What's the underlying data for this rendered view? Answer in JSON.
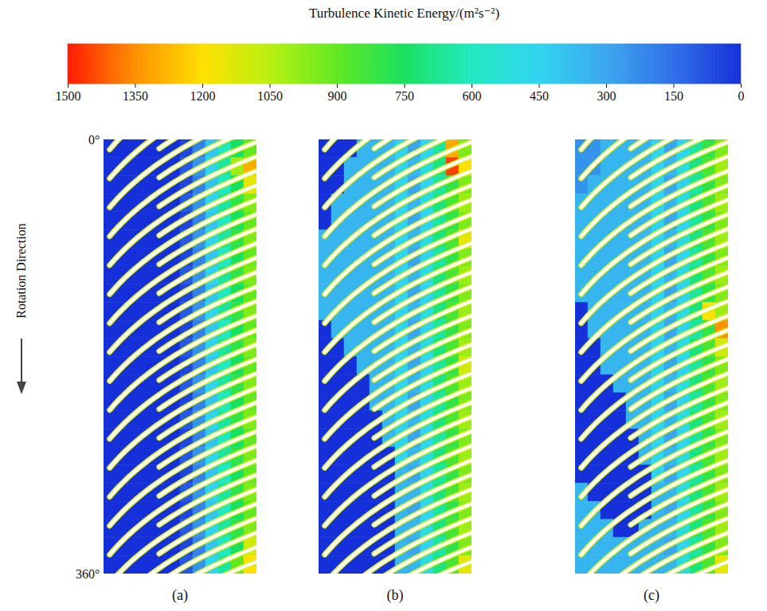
{
  "chart_data": {
    "type": "heatmap",
    "annotation": "Rotation Direction",
    "ylim": [
      0,
      360
    ],
    "yticks": [
      {
        "value": 0,
        "label": "0°"
      },
      {
        "value": 360,
        "label": "360°"
      }
    ],
    "tick_labels": "y",
    "colorbar": {
      "title": "Turbulence Kinetic Energy/(m²s⁻²)",
      "range": [
        0,
        1500
      ],
      "ticks": [
        1500,
        1350,
        1200,
        1050,
        900,
        750,
        600,
        450,
        300,
        150,
        0
      ],
      "colors": [
        "#1530d8",
        "#2f6ee8",
        "#3aa6ee",
        "#30d4f0",
        "#20e8c0",
        "#18e060",
        "#60e820",
        "#b8f010",
        "#ffe000",
        "#ff9000",
        "#ff1a00"
      ]
    },
    "panels": [
      {
        "title": "(a)",
        "cells": [
          [
            0,
            0,
            0,
            0,
            0,
            0,
            50,
            200,
            400,
            600,
            750,
            900
          ],
          [
            0,
            0,
            0,
            0,
            0,
            0,
            100,
            250,
            450,
            650,
            1000,
            1300
          ],
          [
            0,
            0,
            0,
            0,
            0,
            0,
            50,
            200,
            400,
            600,
            750,
            1150
          ],
          [
            0,
            0,
            0,
            0,
            0,
            0,
            100,
            250,
            450,
            650,
            800,
            950
          ],
          [
            0,
            0,
            0,
            0,
            0,
            0,
            50,
            200,
            400,
            600,
            750,
            900
          ],
          [
            0,
            0,
            0,
            0,
            0,
            0,
            100,
            250,
            450,
            650,
            800,
            950
          ],
          [
            0,
            0,
            0,
            0,
            0,
            0,
            50,
            200,
            400,
            600,
            750,
            900
          ],
          [
            0,
            0,
            0,
            0,
            0,
            0,
            100,
            250,
            450,
            650,
            800,
            950
          ],
          [
            0,
            0,
            0,
            0,
            0,
            0,
            50,
            200,
            400,
            600,
            750,
            900
          ],
          [
            0,
            0,
            0,
            0,
            0,
            0,
            100,
            250,
            450,
            650,
            800,
            950
          ],
          [
            0,
            0,
            0,
            0,
            0,
            0,
            50,
            200,
            400,
            600,
            750,
            900
          ],
          [
            0,
            0,
            0,
            0,
            0,
            0,
            100,
            250,
            450,
            650,
            800,
            950
          ],
          [
            0,
            0,
            0,
            0,
            0,
            0,
            50,
            200,
            400,
            600,
            750,
            900
          ],
          [
            0,
            0,
            0,
            0,
            0,
            0,
            100,
            250,
            450,
            650,
            800,
            950
          ],
          [
            0,
            0,
            0,
            0,
            0,
            0,
            50,
            200,
            400,
            600,
            750,
            900
          ],
          [
            0,
            0,
            0,
            0,
            0,
            0,
            100,
            250,
            450,
            650,
            800,
            950
          ],
          [
            0,
            0,
            0,
            0,
            0,
            0,
            50,
            200,
            400,
            600,
            750,
            900
          ],
          [
            0,
            0,
            0,
            0,
            0,
            0,
            100,
            250,
            450,
            650,
            800,
            950
          ],
          [
            0,
            0,
            0,
            0,
            0,
            0,
            50,
            200,
            400,
            600,
            750,
            900
          ],
          [
            0,
            0,
            0,
            0,
            0,
            0,
            100,
            250,
            450,
            650,
            800,
            950
          ],
          [
            0,
            0,
            0,
            0,
            0,
            0,
            50,
            200,
            400,
            600,
            750,
            900
          ],
          [
            0,
            0,
            0,
            0,
            0,
            0,
            100,
            250,
            450,
            650,
            800,
            950
          ],
          [
            0,
            0,
            0,
            0,
            0,
            0,
            50,
            200,
            400,
            600,
            750,
            1100
          ],
          [
            0,
            0,
            0,
            0,
            0,
            0,
            100,
            250,
            450,
            650,
            900,
            1200
          ]
        ]
      },
      {
        "title": "(b)",
        "cells": [
          [
            0,
            0,
            0,
            350,
            350,
            350,
            450,
            300,
            450,
            650,
            1300,
            950
          ],
          [
            0,
            0,
            350,
            350,
            350,
            350,
            450,
            350,
            500,
            700,
            1450,
            1200
          ],
          [
            0,
            0,
            350,
            350,
            350,
            350,
            450,
            300,
            450,
            650,
            800,
            950
          ],
          [
            0,
            350,
            350,
            350,
            350,
            350,
            450,
            350,
            500,
            700,
            850,
            1000
          ],
          [
            0,
            350,
            350,
            350,
            350,
            350,
            450,
            300,
            450,
            650,
            800,
            950
          ],
          [
            350,
            350,
            350,
            350,
            350,
            350,
            450,
            350,
            500,
            700,
            850,
            1150
          ],
          [
            350,
            350,
            350,
            350,
            350,
            350,
            450,
            300,
            450,
            650,
            800,
            950
          ],
          [
            350,
            350,
            350,
            350,
            350,
            350,
            450,
            350,
            500,
            700,
            850,
            1000
          ],
          [
            350,
            350,
            350,
            350,
            350,
            350,
            450,
            300,
            450,
            650,
            800,
            950
          ],
          [
            350,
            350,
            350,
            350,
            350,
            350,
            450,
            350,
            500,
            700,
            850,
            1000
          ],
          [
            0,
            350,
            350,
            350,
            350,
            350,
            450,
            300,
            450,
            650,
            800,
            950
          ],
          [
            0,
            0,
            350,
            350,
            350,
            350,
            450,
            350,
            500,
            700,
            850,
            1000
          ],
          [
            0,
            0,
            0,
            350,
            350,
            350,
            450,
            300,
            450,
            650,
            800,
            1100
          ],
          [
            0,
            0,
            0,
            0,
            350,
            350,
            450,
            350,
            500,
            700,
            850,
            1000
          ],
          [
            0,
            0,
            0,
            0,
            350,
            350,
            450,
            300,
            450,
            650,
            800,
            950
          ],
          [
            0,
            0,
            0,
            0,
            0,
            350,
            450,
            350,
            500,
            700,
            850,
            1000
          ],
          [
            0,
            0,
            0,
            0,
            0,
            350,
            450,
            300,
            450,
            650,
            800,
            950
          ],
          [
            0,
            0,
            0,
            0,
            0,
            0,
            450,
            350,
            500,
            700,
            850,
            1000
          ],
          [
            0,
            0,
            0,
            0,
            0,
            0,
            350,
            300,
            450,
            650,
            800,
            950
          ],
          [
            0,
            0,
            0,
            0,
            0,
            0,
            350,
            350,
            500,
            700,
            850,
            1000
          ],
          [
            0,
            0,
            0,
            0,
            0,
            0,
            350,
            300,
            450,
            650,
            800,
            950
          ],
          [
            0,
            0,
            0,
            0,
            0,
            0,
            350,
            350,
            500,
            700,
            850,
            1000
          ],
          [
            0,
            0,
            0,
            0,
            0,
            0,
            350,
            300,
            450,
            650,
            800,
            950
          ],
          [
            0,
            0,
            0,
            0,
            0,
            0,
            350,
            350,
            500,
            700,
            850,
            1150
          ]
        ]
      },
      {
        "title": "(c)",
        "cells": [
          [
            250,
            250,
            350,
            350,
            350,
            350,
            450,
            300,
            450,
            650,
            800,
            950
          ],
          [
            250,
            250,
            350,
            350,
            350,
            350,
            450,
            350,
            500,
            700,
            850,
            1000
          ],
          [
            250,
            350,
            350,
            350,
            350,
            350,
            450,
            300,
            450,
            650,
            800,
            950
          ],
          [
            350,
            350,
            350,
            350,
            350,
            350,
            450,
            350,
            500,
            700,
            850,
            1000
          ],
          [
            350,
            350,
            350,
            350,
            350,
            350,
            450,
            300,
            450,
            650,
            800,
            950
          ],
          [
            350,
            350,
            350,
            350,
            350,
            350,
            450,
            350,
            500,
            700,
            850,
            1000
          ],
          [
            350,
            350,
            350,
            350,
            350,
            350,
            450,
            300,
            450,
            650,
            800,
            950
          ],
          [
            350,
            350,
            350,
            350,
            350,
            350,
            450,
            350,
            500,
            700,
            850,
            1000
          ],
          [
            350,
            350,
            350,
            350,
            350,
            350,
            450,
            300,
            450,
            650,
            800,
            950
          ],
          [
            0,
            350,
            350,
            350,
            350,
            350,
            450,
            350,
            500,
            700,
            1200,
            1000
          ],
          [
            0,
            350,
            350,
            350,
            350,
            350,
            450,
            300,
            450,
            650,
            800,
            1350
          ],
          [
            0,
            0,
            350,
            350,
            350,
            350,
            450,
            350,
            500,
            700,
            850,
            1100
          ],
          [
            0,
            0,
            350,
            350,
            350,
            350,
            450,
            300,
            450,
            650,
            800,
            950
          ],
          [
            0,
            0,
            0,
            350,
            350,
            350,
            450,
            350,
            500,
            700,
            850,
            1000
          ],
          [
            0,
            0,
            0,
            0,
            350,
            350,
            450,
            300,
            450,
            650,
            800,
            950
          ],
          [
            0,
            0,
            0,
            0,
            350,
            350,
            450,
            350,
            500,
            700,
            850,
            1000
          ],
          [
            0,
            0,
            0,
            0,
            0,
            350,
            450,
            300,
            450,
            650,
            800,
            950
          ],
          [
            0,
            0,
            0,
            0,
            0,
            350,
            450,
            350,
            500,
            700,
            850,
            1000
          ],
          [
            0,
            0,
            0,
            0,
            0,
            0,
            450,
            300,
            450,
            650,
            800,
            950
          ],
          [
            350,
            0,
            0,
            0,
            0,
            0,
            350,
            350,
            500,
            700,
            850,
            1000
          ],
          [
            350,
            350,
            0,
            0,
            0,
            0,
            350,
            300,
            450,
            650,
            800,
            950
          ],
          [
            350,
            350,
            350,
            0,
            0,
            350,
            350,
            350,
            500,
            700,
            850,
            1000
          ],
          [
            350,
            350,
            350,
            350,
            350,
            350,
            350,
            300,
            450,
            650,
            800,
            950
          ],
          [
            350,
            350,
            350,
            350,
            350,
            350,
            350,
            350,
            500,
            700,
            850,
            1150
          ]
        ]
      }
    ]
  }
}
